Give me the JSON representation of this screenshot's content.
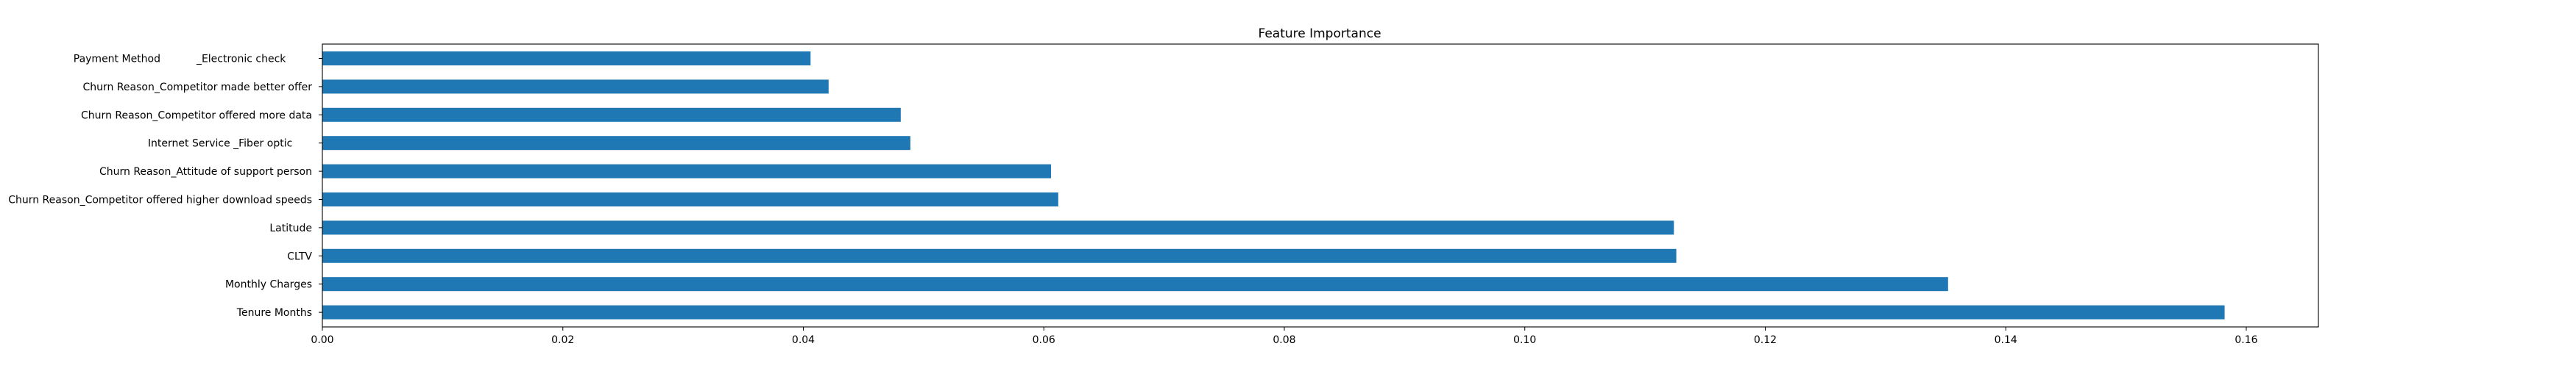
{
  "chart_data": {
    "type": "bar",
    "orientation": "horizontal",
    "title": "Feature Importance",
    "xlabel": "",
    "ylabel": "",
    "xlim": [
      0,
      0.166
    ],
    "xticks": [
      0.0,
      0.02,
      0.04,
      0.06,
      0.08,
      0.1,
      0.12,
      0.14,
      0.16
    ],
    "xtick_labels": [
      "0.00",
      "0.02",
      "0.04",
      "0.06",
      "0.08",
      "0.10",
      "0.12",
      "0.14",
      "0.16"
    ],
    "grid": false,
    "bar_color": "#1f77b4",
    "categories": [
      "Payment Method           _Electronic check        ",
      "Churn Reason_Competitor made better offer",
      "Churn Reason_Competitor offered more data",
      "Internet Service _Fiber optic      ",
      "Churn Reason_Attitude of support person",
      "Churn Reason_Competitor offered higher download speeds",
      "Latitude",
      "CLTV",
      "Monthly Charges",
      "Tenure Months"
    ],
    "values": [
      0.0406,
      0.0421,
      0.0481,
      0.0489,
      0.0606,
      0.0612,
      0.1124,
      0.1126,
      0.1352,
      0.1582
    ]
  }
}
